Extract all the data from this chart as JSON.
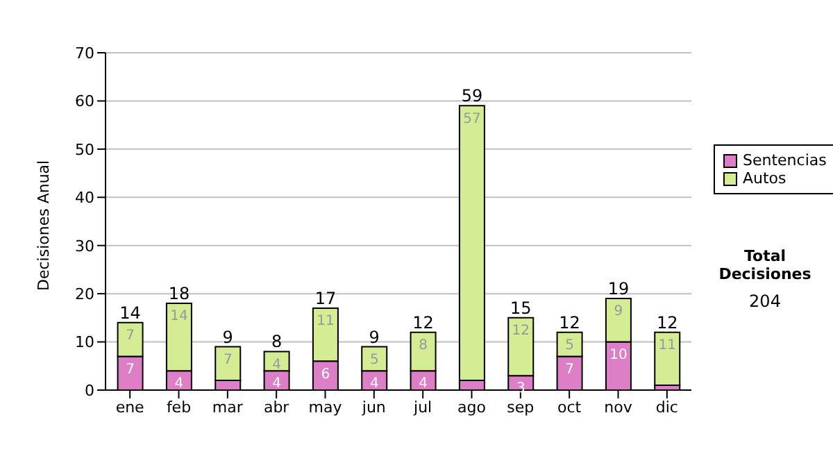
{
  "chart_data": {
    "type": "bar",
    "stacked": true,
    "ylabel": "Decisiones Anual",
    "categories": [
      "ene",
      "feb",
      "mar",
      "abr",
      "may",
      "jun",
      "jul",
      "ago",
      "sep",
      "oct",
      "nov",
      "dic"
    ],
    "series": [
      {
        "name": "Sentencias",
        "color": "#dd7fc6",
        "values": [
          7,
          4,
          2,
          4,
          6,
          4,
          4,
          2,
          3,
          7,
          10,
          1
        ],
        "value_labels": [
          "7",
          "4",
          null,
          "4",
          "6",
          "4",
          "4",
          null,
          "3",
          "7",
          "10",
          null
        ]
      },
      {
        "name": "Autos",
        "color": "#d4ec94",
        "values": [
          7,
          14,
          7,
          4,
          11,
          5,
          8,
          57,
          12,
          5,
          9,
          11
        ],
        "value_labels": [
          "7",
          "14",
          "7",
          "4",
          "11",
          "5",
          "8",
          "57",
          "12",
          "5",
          "9",
          "11"
        ]
      }
    ],
    "totals": [
      "14",
      "18",
      "9",
      "8",
      "17",
      "9",
      "12",
      "59",
      "15",
      "12",
      "19",
      "12"
    ],
    "ylim": [
      0,
      70
    ],
    "yticks": [
      0,
      10,
      20,
      30,
      40,
      50,
      60,
      70
    ],
    "grid": "y",
    "legend": "right",
    "annotations": [
      "Total Decisiones",
      "204"
    ]
  }
}
